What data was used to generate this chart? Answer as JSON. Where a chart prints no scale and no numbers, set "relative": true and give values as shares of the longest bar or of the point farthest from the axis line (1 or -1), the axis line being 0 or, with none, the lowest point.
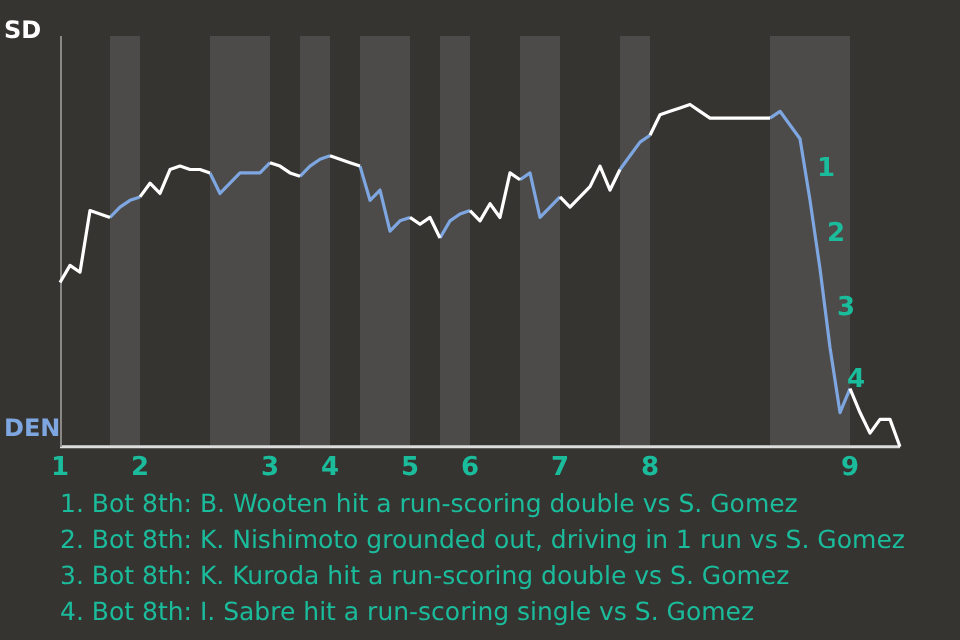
{
  "chart_data": {
    "type": "line",
    "relative": true,
    "categories": [
      "1",
      null,
      null,
      null,
      null,
      null,
      null,
      null,
      "2",
      null,
      null,
      null,
      null,
      null,
      null,
      null,
      null,
      null,
      null,
      null,
      null,
      "3",
      null,
      null,
      null,
      null,
      null,
      "4",
      null,
      null,
      null,
      null,
      null,
      null,
      null,
      "5",
      null,
      null,
      null,
      null,
      null,
      "6",
      null,
      null,
      null,
      null,
      null,
      null,
      null,
      null,
      "7",
      null,
      null,
      null,
      null,
      null,
      null,
      null,
      null,
      "8",
      null,
      null,
      null,
      null,
      null,
      null,
      null,
      null,
      null,
      null,
      null,
      null,
      null,
      null,
      null,
      null,
      null,
      null,
      null,
      "9",
      null,
      null,
      null,
      null,
      null
    ],
    "series": [
      {
        "color": "#ffffff",
        "values": [
          0.48,
          0.53,
          0.51,
          0.69,
          0.68,
          0.67,
          null,
          null,
          0.73,
          0.77,
          0.74,
          0.81,
          0.82,
          0.81,
          0.81,
          0.8,
          null,
          null,
          null,
          null,
          null,
          0.83,
          0.82,
          0.8,
          0.79,
          null,
          null,
          0.85,
          0.84,
          0.83,
          0.82,
          null,
          null,
          null,
          null,
          0.67,
          0.65,
          0.67,
          0.61,
          null,
          null,
          0.69,
          0.66,
          0.71,
          0.67,
          0.8,
          0.78,
          null,
          null,
          null,
          0.73,
          0.7,
          0.73,
          0.76,
          0.82,
          0.75,
          0.81,
          null,
          null,
          0.91,
          0.97,
          0.98,
          0.99,
          1,
          0.98,
          0.96,
          0.96,
          0.96,
          0.96,
          0.96,
          0.96,
          0.96,
          null,
          null,
          null,
          null,
          null,
          null,
          null,
          0.17,
          0.1,
          0.04,
          0.08,
          0.08,
          0
        ]
      },
      {
        "color": "#7ea6e0",
        "values": [
          null,
          null,
          null,
          null,
          null,
          0.67,
          0.7,
          0.72,
          0.73,
          null,
          null,
          null,
          null,
          null,
          null,
          0.8,
          0.74,
          0.77,
          0.8,
          0.8,
          0.8,
          0.83,
          null,
          null,
          0.79,
          0.82,
          0.84,
          0.85,
          null,
          null,
          0.82,
          0.72,
          0.75,
          0.63,
          0.66,
          0.67,
          null,
          null,
          0.61,
          0.66,
          0.68,
          0.69,
          null,
          null,
          null,
          null,
          0.78,
          0.8,
          0.67,
          0.7,
          0.73,
          null,
          null,
          null,
          null,
          null,
          0.81,
          0.85,
          0.89,
          0.91,
          null,
          null,
          null,
          null,
          null,
          null,
          null,
          null,
          null,
          null,
          null,
          0.96,
          0.98,
          0.94,
          0.9,
          0.72,
          0.52,
          0.29,
          0.1,
          0.17,
          null,
          null,
          null,
          null,
          null
        ]
      }
    ],
    "marker": "none",
    "annotations": [
      "SD",
      "DEN",
      "1",
      "2",
      "3",
      "4",
      "1. Bot 8th: B. Wooten hit a run-scoring double vs S. Gomez",
      "2. Bot 8th: K. Nishimoto grounded out, driving in 1 run vs S. Gomez",
      "3. Bot 8th: K. Kuroda hit a run-scoring double vs S. Gomez",
      "4. Bot 8th: I. Sabre hit a run-scoring single vs S. Gomez"
    ]
  }
}
